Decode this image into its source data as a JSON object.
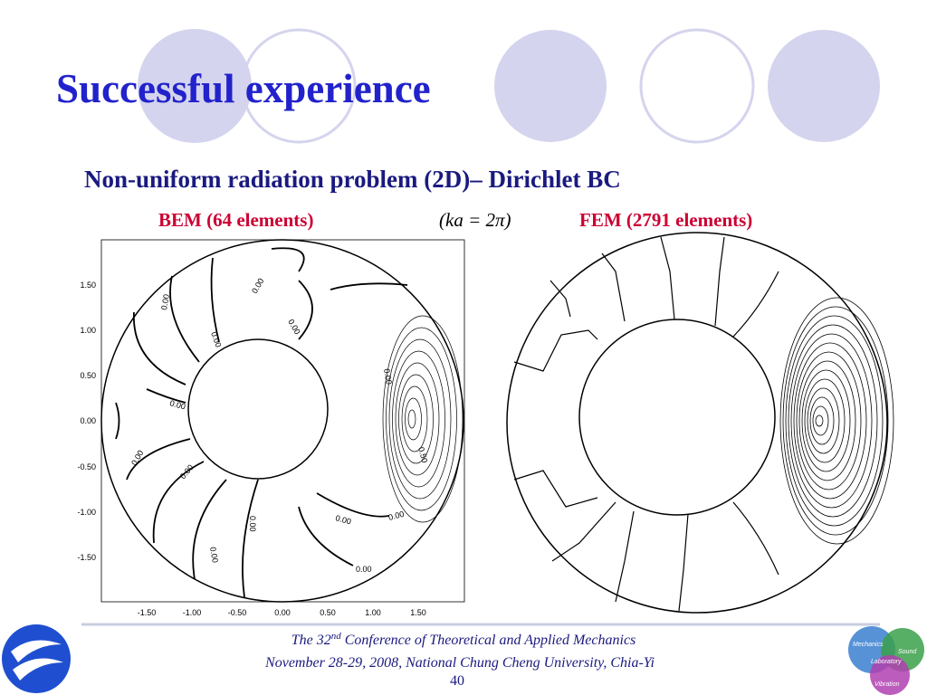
{
  "title": "Successful experience",
  "subtitle": "Non-uniform radiation problem (2D)– Dirichlet BC",
  "bem_label": "BEM (64  elements)",
  "equation": "(ka = 2π)",
  "fem_label": "FEM (2791  elements)",
  "bem_plot": {
    "yticks": [
      "1.50",
      "1.00",
      "0.50",
      "0.00",
      "-0.50",
      "-1.00",
      "-1.50"
    ],
    "xticks": [
      "-1.50",
      "-1.00",
      "-0.50",
      "0.00",
      "0.50",
      "1.00",
      "1.50"
    ],
    "contour_labels": [
      "0.00",
      "0.00",
      "0.00",
      "0.00",
      "0.00",
      "0.00",
      "0.00",
      "0.00",
      "0.00",
      "0.00",
      "0.00",
      "0.00",
      "0.00",
      "0.50"
    ]
  },
  "footer": {
    "line1_pre": "The 32",
    "line1_sup": "nd",
    "line1_post": " Conference of Theoretical and Applied Mechanics",
    "line2": "November 28-29, 2008, National Chung Cheng University, Chia-Yi",
    "page": "40"
  },
  "logo": {
    "words": [
      "Mechanics",
      "Sound",
      "Laboratory",
      "Vibration"
    ]
  }
}
